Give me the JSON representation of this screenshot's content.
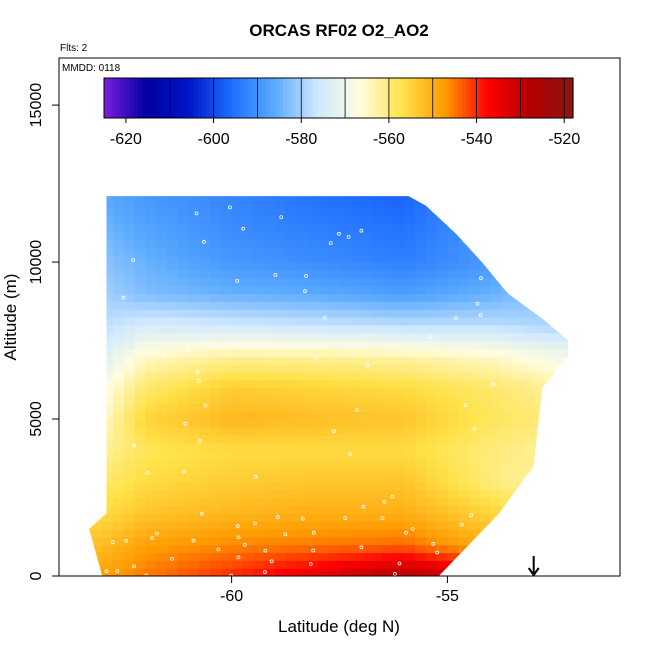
{
  "chart_data": {
    "type": "heatmap",
    "title": "ORCAS RF02 O2_AO2",
    "subtitle_flights": "Flts: 2",
    "subtitle_date": "MMDD: 0118",
    "xlabel": "Latitude (deg N)",
    "ylabel": "Altitude (m)",
    "xlim": [
      -64.0,
      -51.0
    ],
    "ylim": [
      0,
      16500
    ],
    "x_ticks": [
      -60,
      -55
    ],
    "x_tick_labels": [
      "-60",
      "-55"
    ],
    "y_ticks": [
      0,
      5000,
      10000,
      15000
    ],
    "y_tick_labels": [
      "0",
      "5000",
      "10000",
      "15000"
    ],
    "colorbar": {
      "range": [
        -625,
        -518
      ],
      "ticks": [
        -620,
        -600,
        -580,
        -560,
        -540,
        -520
      ],
      "tick_labels": [
        "-620",
        "-600",
        "-580",
        "-560",
        "-540",
        "-520"
      ],
      "boundaries": [
        -610,
        -600,
        -590,
        -580,
        -570,
        -560,
        -550,
        -540,
        -530,
        -520
      ],
      "colors": [
        "#7a1fe0",
        "#00009e",
        "#0016c8",
        "#1f6fff",
        "#5aaaff",
        "#cfe8ff",
        "#fffde0",
        "#ffe24a",
        "#ff9a00",
        "#ff0000",
        "#b30000",
        "#8c1414"
      ]
    },
    "region": {
      "top_boundary": [
        [
          -62.85,
          12100
        ],
        [
          -55.9,
          12100
        ],
        [
          -55.5,
          11800
        ],
        [
          -54.8,
          10900
        ],
        [
          -54.2,
          10000
        ],
        [
          -53.6,
          9000
        ],
        [
          -52.8,
          8200
        ],
        [
          -52.2,
          7500
        ],
        [
          -52.2,
          7000
        ],
        [
          -52.8,
          6000
        ],
        [
          -53.0,
          3500
        ],
        [
          -53.8,
          2000
        ],
        [
          -54.5,
          1000
        ],
        [
          -55.2,
          0
        ]
      ],
      "left_boundary": [
        [
          -63.0,
          0
        ],
        [
          -63.3,
          1500
        ],
        [
          -62.9,
          2000
        ],
        [
          -62.9,
          12100
        ]
      ]
    },
    "profile_columns": [
      {
        "lat": -63.0,
        "levels": [
          [
            0,
            -548
          ],
          [
            1000,
            -552
          ],
          [
            2000,
            -556
          ],
          [
            3000,
            -559
          ],
          [
            4000,
            -562
          ],
          [
            5000,
            -565
          ],
          [
            6000,
            -568
          ],
          [
            7000,
            -573
          ],
          [
            8000,
            -578
          ],
          [
            9000,
            -580
          ],
          [
            10000,
            -582
          ],
          [
            11000,
            -584
          ],
          [
            12000,
            -586
          ]
        ]
      },
      {
        "lat": -62.0,
        "levels": [
          [
            0,
            -545
          ],
          [
            1000,
            -548
          ],
          [
            2000,
            -553
          ],
          [
            3000,
            -556
          ],
          [
            4000,
            -558
          ],
          [
            5000,
            -555
          ],
          [
            6000,
            -559
          ],
          [
            7000,
            -565
          ],
          [
            8000,
            -575
          ],
          [
            9000,
            -583
          ],
          [
            10000,
            -585
          ],
          [
            11000,
            -587
          ],
          [
            12000,
            -589
          ]
        ]
      },
      {
        "lat": -60.0,
        "levels": [
          [
            0,
            -540
          ],
          [
            1000,
            -546
          ],
          [
            2000,
            -551
          ],
          [
            3000,
            -554
          ],
          [
            4000,
            -556
          ],
          [
            5000,
            -551
          ],
          [
            6000,
            -554
          ],
          [
            7000,
            -562
          ],
          [
            8000,
            -576
          ],
          [
            9000,
            -585
          ],
          [
            10000,
            -589
          ],
          [
            11000,
            -591
          ],
          [
            12000,
            -592
          ]
        ]
      },
      {
        "lat": -58.0,
        "levels": [
          [
            0,
            -534
          ],
          [
            1000,
            -545
          ],
          [
            2000,
            -550
          ],
          [
            3000,
            -553
          ],
          [
            4000,
            -556
          ],
          [
            5000,
            -552
          ],
          [
            6000,
            -555
          ],
          [
            7000,
            -562
          ],
          [
            8000,
            -577
          ],
          [
            9000,
            -586
          ],
          [
            10000,
            -591
          ],
          [
            11000,
            -593
          ],
          [
            12000,
            -595
          ]
        ]
      },
      {
        "lat": -56.0,
        "levels": [
          [
            0,
            -527
          ],
          [
            1000,
            -544
          ],
          [
            2000,
            -550
          ],
          [
            3000,
            -553
          ],
          [
            4000,
            -556
          ],
          [
            5000,
            -553
          ],
          [
            6000,
            -556
          ],
          [
            7000,
            -563
          ],
          [
            8000,
            -578
          ],
          [
            9000,
            -588
          ],
          [
            10000,
            -593
          ],
          [
            11000,
            -595
          ],
          [
            12000,
            -597
          ]
        ]
      },
      {
        "lat": -54.0,
        "levels": [
          [
            0,
            -535
          ],
          [
            1000,
            -550
          ],
          [
            2000,
            -555
          ],
          [
            3000,
            -560
          ],
          [
            4000,
            -560
          ],
          [
            5000,
            -558
          ],
          [
            6000,
            -559
          ],
          [
            7000,
            -565
          ],
          [
            8000,
            -578
          ],
          [
            9000,
            -585
          ],
          [
            10000,
            -589
          ]
        ]
      },
      {
        "lat": -52.0,
        "levels": [
          [
            0,
            -545
          ],
          [
            1000,
            -556
          ],
          [
            2000,
            -561
          ],
          [
            3000,
            -565
          ],
          [
            4000,
            -563
          ],
          [
            5000,
            -561
          ],
          [
            6000,
            -563
          ],
          [
            7000,
            -570
          ],
          [
            8000,
            -580
          ]
        ]
      }
    ],
    "marker_arrow": {
      "lat": -53.0,
      "altitude": 0
    }
  }
}
